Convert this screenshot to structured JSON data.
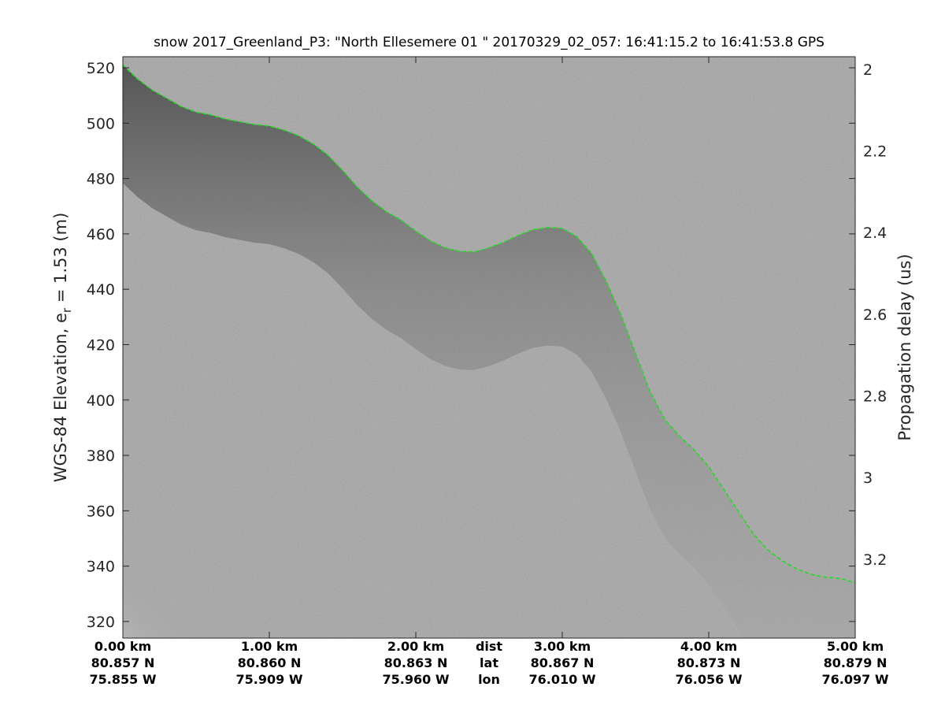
{
  "chart_data": {
    "type": "radar echogram",
    "title": "snow 2017_Greenland_P3: \"North Ellesemere 01 \"  20170329_02_057: 16:41:15.2 to 16:41:53.8 GPS",
    "ylabel_main": "WGS-84 Elevation, e",
    "ylabel_sub": "r",
    "ylabel_rest": " = 1.53 (m)",
    "y2label": "Propagation delay (us)",
    "ylim": [
      314,
      524
    ],
    "y_ticks": [
      320,
      340,
      360,
      380,
      400,
      420,
      440,
      460,
      480,
      500,
      520
    ],
    "y2_ticks": [
      {
        "label": "2",
        "elevation": 519.5
      },
      {
        "label": "2.2",
        "elevation": 490
      },
      {
        "label": "2.4",
        "elevation": 460.5
      },
      {
        "label": "2.6",
        "elevation": 431
      },
      {
        "label": "2.8",
        "elevation": 401.5
      },
      {
        "label": "3",
        "elevation": 372
      },
      {
        "label": "3.2",
        "elevation": 342.5
      }
    ],
    "xlim": [
      0,
      5
    ],
    "x_ticks": [
      {
        "x": 0,
        "dist": "0.00 km",
        "lat": "80.857 N",
        "lon": "75.855 W"
      },
      {
        "x": 1,
        "dist": "1.00 km",
        "lat": "80.860 N",
        "lon": "75.909 W"
      },
      {
        "x": 2,
        "dist": "2.00 km",
        "lat": "80.863 N",
        "lon": "75.960 W"
      },
      {
        "x": 3,
        "dist": "3.00 km",
        "lat": "80.867 N",
        "lon": "76.010 W"
      },
      {
        "x": 4,
        "dist": "4.00 km",
        "lat": "80.873 N",
        "lon": "76.056 W"
      },
      {
        "x": 5,
        "dist": "5.00 km",
        "lat": "80.879 N",
        "lon": "76.097 W"
      }
    ],
    "row_labels": {
      "x": 2.5,
      "dist": "dist",
      "lat": "lat",
      "lon": "lon"
    },
    "surface_line_color": "#22dd22",
    "background_color": "#a4a4a4",
    "surface_trace": {
      "x": [
        0,
        0.1,
        0.2,
        0.3,
        0.4,
        0.5,
        0.6,
        0.7,
        0.8,
        0.9,
        1.0,
        1.1,
        1.2,
        1.3,
        1.4,
        1.5,
        1.6,
        1.7,
        1.8,
        1.9,
        2.0,
        2.1,
        2.2,
        2.3,
        2.4,
        2.5,
        2.6,
        2.7,
        2.8,
        2.9,
        3.0,
        3.1,
        3.2,
        3.3,
        3.4,
        3.5,
        3.6,
        3.7,
        3.8,
        3.9,
        4.0,
        4.1,
        4.2,
        4.3,
        4.4,
        4.5,
        4.6,
        4.7,
        4.8,
        4.9,
        5.0
      ],
      "y": [
        521,
        516,
        512,
        509,
        506,
        504,
        503,
        501.5,
        500.5,
        499.5,
        499,
        497.5,
        495.5,
        492.5,
        488.5,
        483,
        477,
        472,
        468,
        465,
        461,
        457.5,
        455,
        453.7,
        453.5,
        455,
        457,
        459.5,
        461.5,
        462.3,
        462,
        459,
        453,
        443,
        431,
        417,
        403,
        393,
        387,
        382,
        376,
        368,
        360,
        352,
        346,
        342,
        339,
        337,
        336,
        335.5,
        334
      ]
    }
  }
}
